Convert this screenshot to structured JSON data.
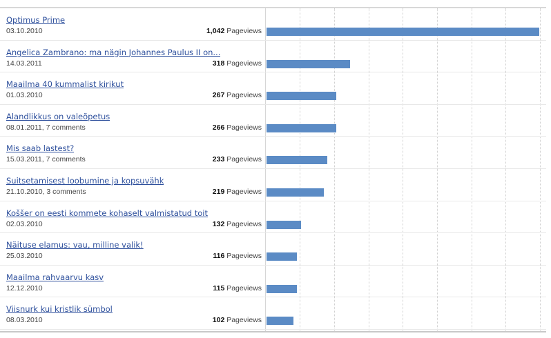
{
  "pageviews_label": "Pageviews",
  "colors": {
    "bar": "#5b8bc5",
    "link": "#2d4f9c"
  },
  "chart_data": {
    "type": "bar",
    "max_value": 1042,
    "rows": [
      {
        "title": "Optimus Prime",
        "meta": "03.10.2010",
        "value": 1042,
        "value_text": "1,042"
      },
      {
        "title": "Angelica Zambrano: ma nägin Johannes Paulus II on...",
        "meta": "14.03.2011",
        "value": 318,
        "value_text": "318"
      },
      {
        "title": "Maailma 40 kummalist kirikut",
        "meta": "01.03.2010",
        "value": 267,
        "value_text": "267"
      },
      {
        "title": "Alandlikkus on valeõpetus",
        "meta": "08.01.2011, 7 comments",
        "value": 266,
        "value_text": "266"
      },
      {
        "title": "Mis saab lastest?",
        "meta": "15.03.2011, 7 comments",
        "value": 233,
        "value_text": "233"
      },
      {
        "title": "Suitsetamisest loobumine ja kopsuvähk",
        "meta": "21.10.2010, 3 comments",
        "value": 219,
        "value_text": "219"
      },
      {
        "title": "Koššer on eesti kommete kohaselt valmistatud toit",
        "meta": "02.03.2010",
        "value": 132,
        "value_text": "132"
      },
      {
        "title": "Näituse elamus: vau, milline valik!",
        "meta": "25.03.2010",
        "value": 116,
        "value_text": "116"
      },
      {
        "title": "Maailma rahvaarvu kasv",
        "meta": "12.12.2010",
        "value": 115,
        "value_text": "115"
      },
      {
        "title": "Viisnurk kui kristlik sümbol",
        "meta": "08.03.2010",
        "value": 102,
        "value_text": "102"
      }
    ]
  }
}
